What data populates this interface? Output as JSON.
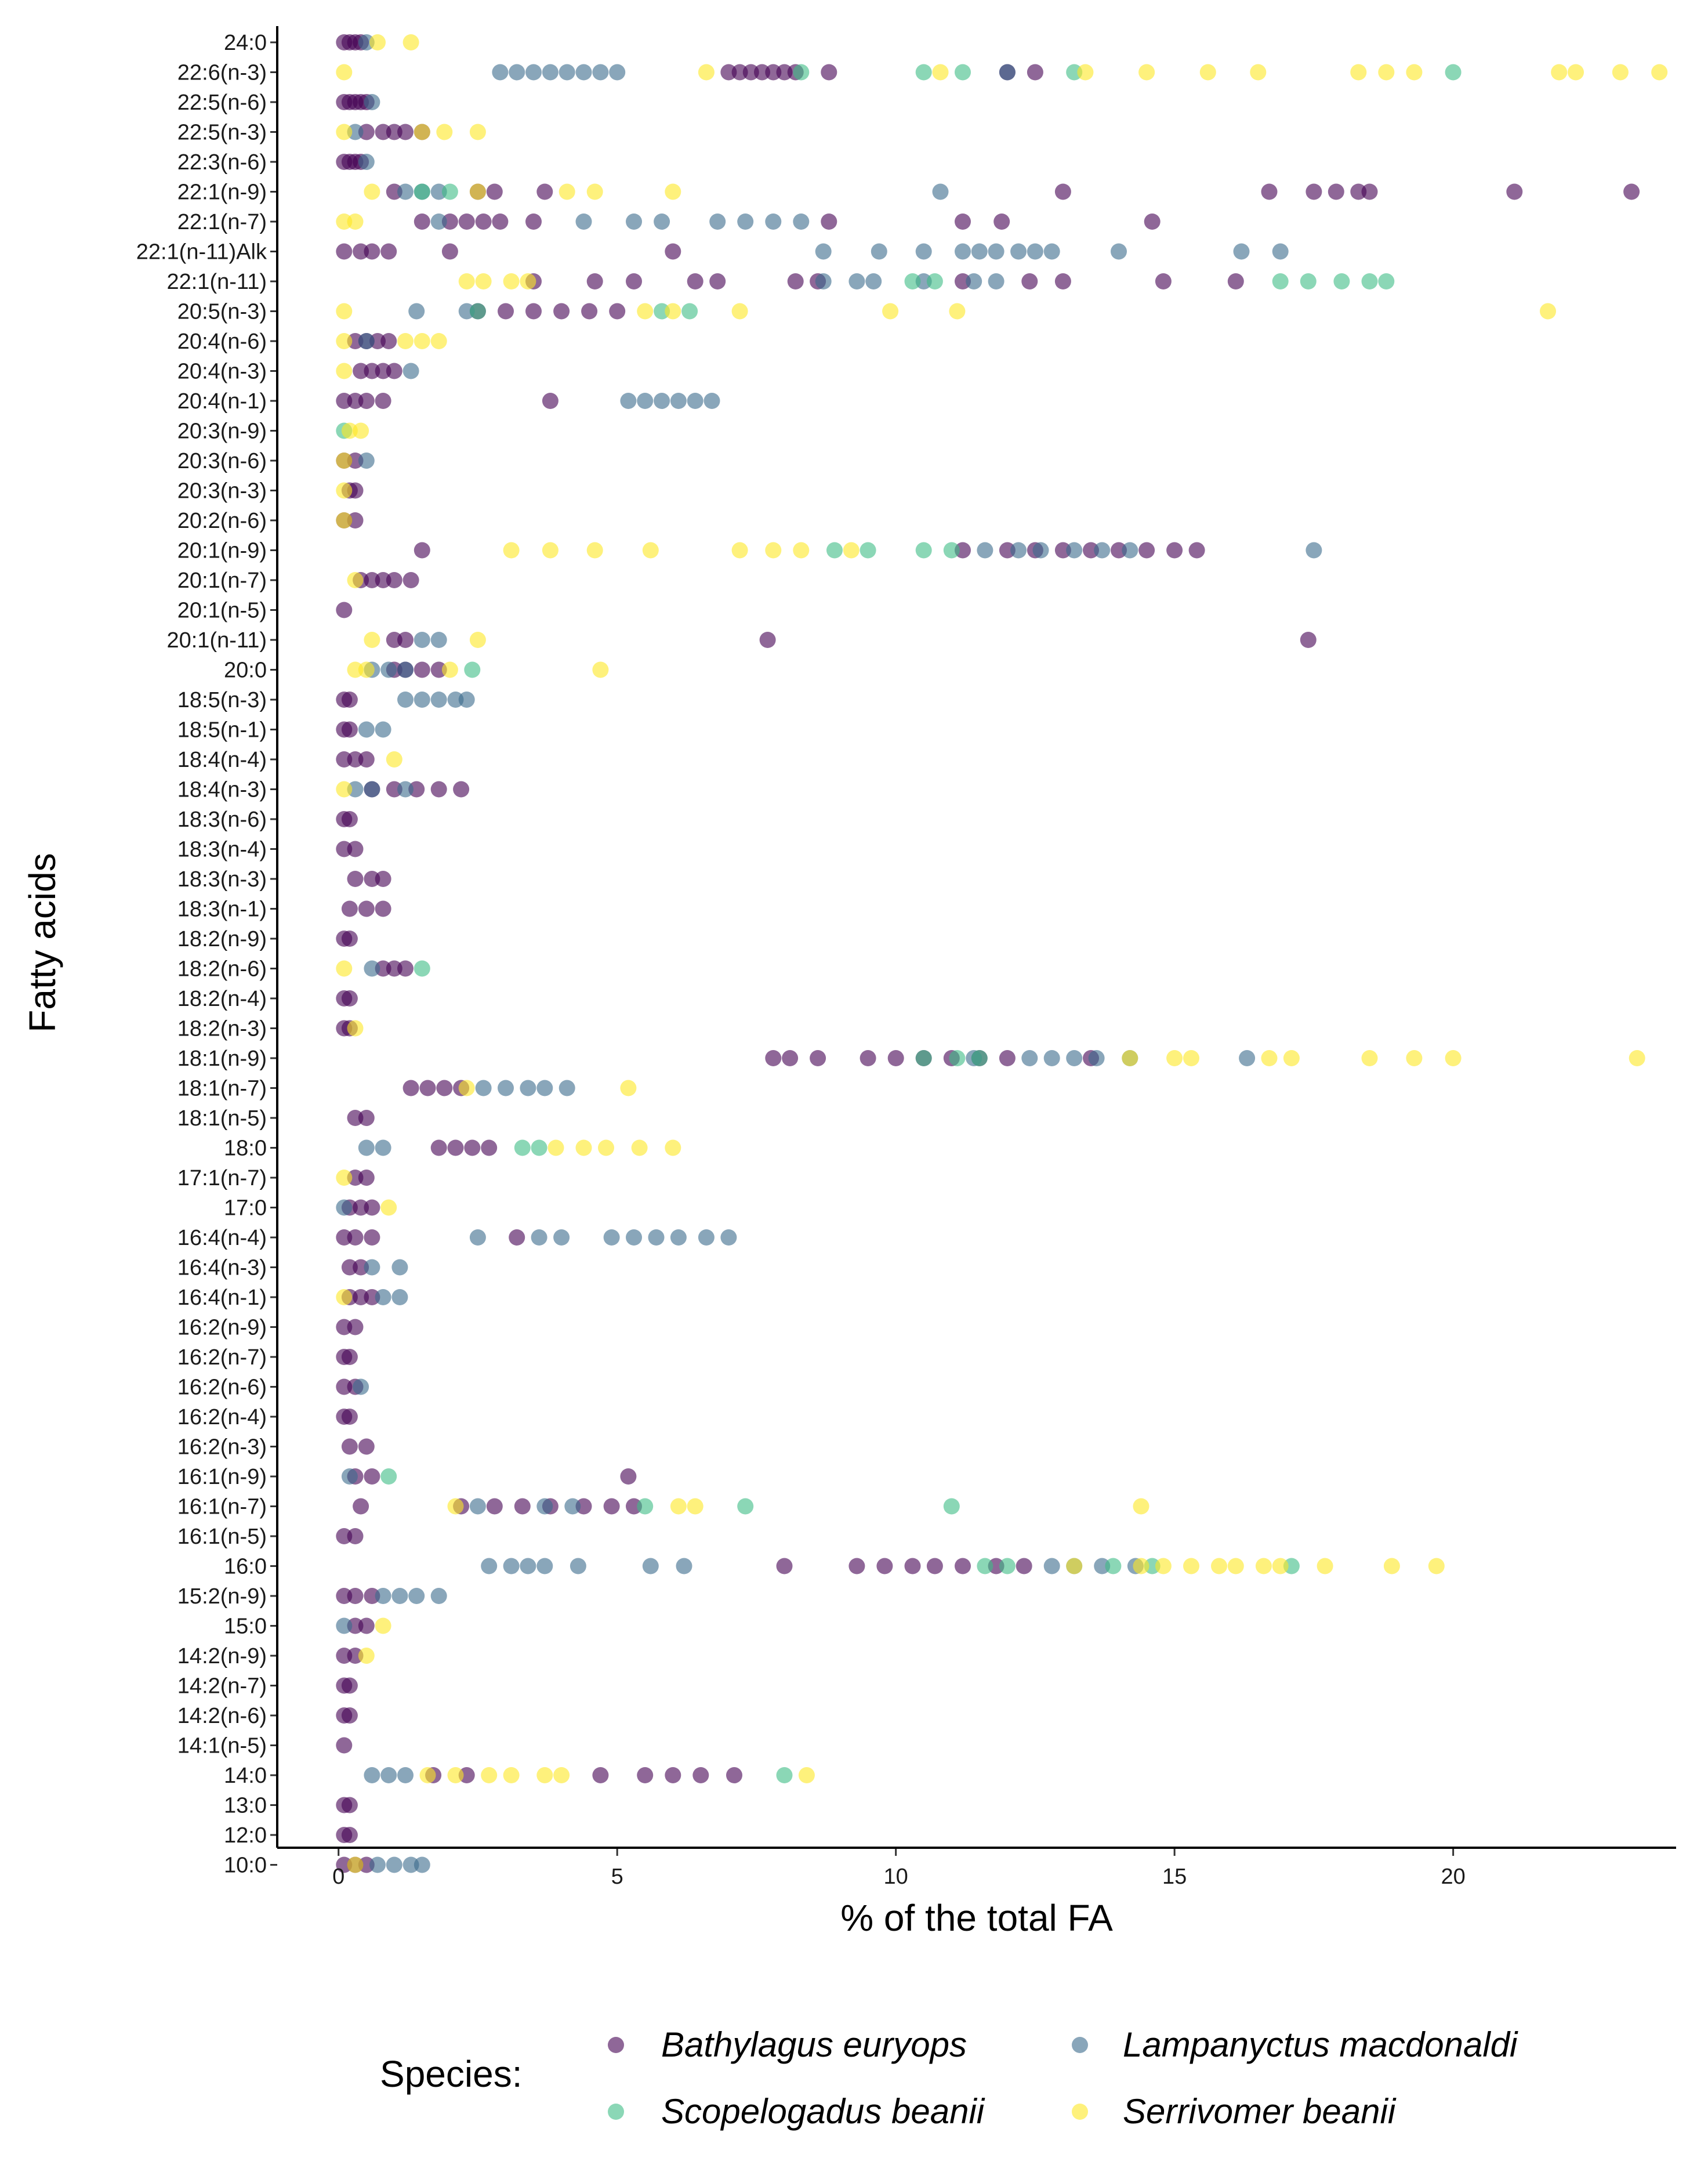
{
  "chart_data": {
    "type": "scatter",
    "title": "",
    "xlabel": "% of the total FA",
    "ylabel": "Fatty acids",
    "xlim": [
      -1.1,
      24.0
    ],
    "xticks": [
      0,
      5,
      10,
      15,
      20
    ],
    "grid": false,
    "legend_title": "Species:",
    "legend_position": "bottom",
    "categories": [
      "24:0",
      "22:6(n-3)",
      "22:5(n-6)",
      "22:5(n-3)",
      "22:3(n-6)",
      "22:1(n-9)",
      "22:1(n-7)",
      "22:1(n-11)Alk",
      "22:1(n-11)",
      "20:5(n-3)",
      "20:4(n-6)",
      "20:4(n-3)",
      "20:4(n-1)",
      "20:3(n-9)",
      "20:3(n-6)",
      "20:3(n-3)",
      "20:2(n-6)",
      "20:1(n-9)",
      "20:1(n-7)",
      "20:1(n-5)",
      "20:1(n-11)",
      "20:0",
      "18:5(n-3)",
      "18:5(n-1)",
      "18:4(n-4)",
      "18:4(n-3)",
      "18:3(n-6)",
      "18:3(n-4)",
      "18:3(n-3)",
      "18:3(n-1)",
      "18:2(n-9)",
      "18:2(n-6)",
      "18:2(n-4)",
      "18:2(n-3)",
      "18:1(n-9)",
      "18:1(n-7)",
      "18:1(n-5)",
      "18:0",
      "17:1(n-7)",
      "17:0",
      "16:4(n-4)",
      "16:4(n-3)",
      "16:4(n-1)",
      "16:2(n-9)",
      "16:2(n-7)",
      "16:2(n-6)",
      "16:2(n-4)",
      "16:2(n-3)",
      "16:1(n-9)",
      "16:1(n-7)",
      "16:1(n-5)",
      "16:0",
      "15:2(n-9)",
      "15:0",
      "14:2(n-9)",
      "14:2(n-7)",
      "14:2(n-6)",
      "14:1(n-5)",
      "14:0",
      "13:0",
      "12:0",
      "10:0"
    ],
    "series": [
      {
        "name": "Bathylagus euryops",
        "color": "#440154",
        "points": {
          "24:0": [
            0.1,
            0.2,
            0.3,
            0.4
          ],
          "22:6(n-3)": [
            7.0,
            7.2,
            7.4,
            7.6,
            7.8,
            8.0,
            8.2,
            8.8,
            12.0,
            12.5
          ],
          "22:5(n-6)": [
            0.1,
            0.2,
            0.3,
            0.4,
            0.5
          ],
          "22:5(n-3)": [
            0.5,
            0.8,
            1.0,
            1.2,
            1.5
          ],
          "22:3(n-6)": [
            0.1,
            0.2,
            0.3,
            0.4
          ],
          "22:1(n-9)": [
            1.0,
            2.5,
            2.8,
            3.7,
            13.0,
            16.7,
            17.5,
            17.9,
            18.3,
            18.5,
            21.1,
            23.2
          ],
          "22:1(n-7)": [
            1.5,
            2.0,
            2.3,
            2.6,
            2.9,
            3.5,
            8.8,
            11.2,
            11.9,
            14.6
          ],
          "22:1(n-11)Alk": [
            0.1,
            0.4,
            0.6,
            0.9,
            2.0,
            6.0
          ],
          "22:1(n-11)": [
            3.5,
            4.6,
            5.3,
            6.4,
            6.8,
            8.2,
            8.6,
            11.2,
            12.4,
            13.0,
            14.8,
            16.1
          ],
          "20:5(n-3)": [
            2.5,
            3.0,
            3.5,
            4.0,
            4.5,
            5.0
          ],
          "20:4(n-6)": [
            0.3,
            0.5,
            0.7,
            0.9
          ],
          "20:4(n-3)": [
            0.4,
            0.6,
            0.8,
            1.0
          ],
          "20:4(n-1)": [
            0.1,
            0.3,
            0.5,
            0.8,
            3.8
          ],
          "20:3(n-6)": [
            0.1,
            0.3
          ],
          "20:3(n-3)": [
            0.2,
            0.3
          ],
          "20:2(n-6)": [
            0.1,
            0.3
          ],
          "20:1(n-9)": [
            1.5,
            11.2,
            12.0,
            12.5,
            13.0,
            13.5,
            14.0,
            14.5,
            15.0,
            15.4
          ],
          "20:1(n-7)": [
            0.4,
            0.6,
            0.8,
            1.0,
            1.3
          ],
          "20:1(n-5)": [
            0.1
          ],
          "20:1(n-11)": [
            1.0,
            1.2,
            7.7,
            17.4
          ],
          "20:0": [
            1.0,
            1.2,
            1.5,
            1.8
          ],
          "18:5(n-3)": [
            0.1,
            0.2
          ],
          "18:5(n-1)": [
            0.1,
            0.2
          ],
          "18:4(n-4)": [
            0.1,
            0.3,
            0.5
          ],
          "18:4(n-3)": [
            0.6,
            1.0,
            1.4,
            1.8,
            2.2
          ],
          "18:3(n-6)": [
            0.1,
            0.2
          ],
          "18:3(n-4)": [
            0.1,
            0.3
          ],
          "18:3(n-3)": [
            0.3,
            0.6,
            0.8
          ],
          "18:3(n-1)": [
            0.2,
            0.5,
            0.8
          ],
          "18:2(n-9)": [
            0.1,
            0.2
          ],
          "18:2(n-6)": [
            0.8,
            1.0,
            1.2
          ],
          "18:2(n-4)": [
            0.1,
            0.2
          ],
          "18:2(n-3)": [
            0.1,
            0.2
          ],
          "18:1(n-9)": [
            7.8,
            8.1,
            8.6,
            9.5,
            10.0,
            10.5,
            11.0,
            11.5,
            12.0,
            13.5
          ],
          "18:1(n-7)": [
            1.3,
            1.6,
            1.9,
            2.2
          ],
          "18:1(n-5)": [
            0.3,
            0.5
          ],
          "18:0": [
            1.8,
            2.1,
            2.4,
            2.7
          ],
          "17:1(n-7)": [
            0.3,
            0.5
          ],
          "17:0": [
            0.2,
            0.4,
            0.6
          ],
          "16:4(n-4)": [
            0.1,
            0.3,
            0.6,
            3.2
          ],
          "16:4(n-3)": [
            0.2,
            0.4
          ],
          "16:4(n-1)": [
            0.2,
            0.4,
            0.6
          ],
          "16:2(n-9)": [
            0.1,
            0.3
          ],
          "16:2(n-7)": [
            0.1,
            0.2
          ],
          "16:2(n-6)": [
            0.1,
            0.3
          ],
          "16:2(n-4)": [
            0.1,
            0.2
          ],
          "16:2(n-3)": [
            0.2,
            0.5
          ],
          "16:1(n-9)": [
            0.3,
            0.6,
            5.2
          ],
          "16:1(n-7)": [
            0.4,
            2.2,
            2.8,
            3.3,
            3.8,
            4.4,
            4.9,
            5.3
          ],
          "16:1(n-5)": [
            0.1,
            0.3
          ],
          "16:0": [
            8.0,
            9.3,
            9.8,
            10.3,
            10.7,
            11.2,
            11.8,
            12.3
          ],
          "15:2(n-9)": [
            0.1,
            0.3,
            0.6
          ],
          "15:0": [
            0.3,
            0.5
          ],
          "14:2(n-9)": [
            0.1,
            0.3
          ],
          "14:2(n-7)": [
            0.1,
            0.2
          ],
          "14:2(n-6)": [
            0.1,
            0.2
          ],
          "14:1(n-5)": [
            0.1
          ],
          "14:0": [
            1.7,
            2.3,
            4.7,
            5.5,
            6.0,
            6.5,
            7.1
          ],
          "13:0": [
            0.1,
            0.2
          ],
          "12:0": [
            0.1,
            0.2
          ],
          "10:0": [
            0.1,
            0.3,
            0.5
          ]
        }
      },
      {
        "name": "Lampanyctus macdonaldi",
        "color": "#3b6b8c",
        "points": {
          "24:0": [
            0.5
          ],
          "22:6(n-3)": [
            2.9,
            3.2,
            3.5,
            3.8,
            4.1,
            4.4,
            4.7,
            5.0,
            12.0
          ],
          "22:5(n-6)": [
            0.6
          ],
          "22:5(n-3)": [
            0.3
          ],
          "22:3(n-6)": [
            0.5
          ],
          "22:1(n-9)": [
            1.2,
            1.5,
            1.8,
            10.8
          ],
          "22:1(n-7)": [
            1.8,
            4.4,
            5.3,
            5.8,
            6.8,
            7.3,
            7.8,
            8.3
          ],
          "22:1(n-11)Alk": [
            8.7,
            9.7,
            10.5,
            11.2,
            11.5,
            11.8,
            12.2,
            12.5,
            12.8,
            14.0,
            16.2,
            16.9
          ],
          "22:1(n-11)": [
            8.7,
            9.3,
            9.6,
            10.5,
            11.4,
            11.8
          ],
          "20:5(n-3)": [
            1.4,
            2.3
          ],
          "20:4(n-6)": [
            0.5
          ],
          "20:4(n-3)": [
            1.3
          ],
          "20:4(n-1)": [
            5.2,
            5.5,
            5.8,
            6.1,
            6.4,
            6.7
          ],
          "20:3(n-6)": [
            0.5
          ],
          "20:1(n-9)": [
            11.6,
            12.2,
            12.6,
            13.2,
            13.7,
            14.2,
            17.5
          ],
          "20:1(n-11)": [
            1.5,
            1.8
          ],
          "20:0": [
            0.6,
            0.9,
            1.2
          ],
          "18:5(n-3)": [
            1.2,
            1.5,
            1.8,
            2.1,
            2.3
          ],
          "18:5(n-1)": [
            0.5,
            0.8
          ],
          "18:4(n-3)": [
            0.3,
            0.6,
            1.2
          ],
          "18:2(n-6)": [
            0.6
          ],
          "18:1(n-9)": [
            11.4,
            12.4,
            12.8,
            13.2,
            13.6,
            14.2,
            16.3
          ],
          "18:1(n-7)": [
            2.6,
            3.0,
            3.4,
            3.7,
            4.1
          ],
          "18:0": [
            0.5,
            0.8
          ],
          "17:0": [
            0.1
          ],
          "16:4(n-4)": [
            2.5,
            3.6,
            4.0,
            4.9,
            5.3,
            5.7,
            6.1,
            6.6,
            7.0
          ],
          "16:4(n-3)": [
            0.6,
            1.1
          ],
          "16:4(n-1)": [
            0.8,
            1.1
          ],
          "16:2(n-6)": [
            0.4
          ],
          "16:1(n-9)": [
            0.2
          ],
          "16:1(n-7)": [
            2.5,
            3.7,
            4.2
          ],
          "16:0": [
            2.7,
            3.1,
            3.4,
            3.7,
            4.3,
            5.6,
            6.2,
            12.8,
            13.2,
            13.7,
            14.3
          ],
          "15:2(n-9)": [
            0.8,
            1.1,
            1.4,
            1.8
          ],
          "15:0": [
            0.1
          ],
          "14:0": [
            0.6,
            0.9,
            1.2
          ],
          "10:0": [
            0.7,
            1.0,
            1.3,
            1.5
          ]
        }
      },
      {
        "name": "Scopelogadus beanii",
        "color": "#3ebd85",
        "points": {
          "22:6(n-3)": [
            8.3,
            10.5,
            11.2,
            13.2,
            20.0
          ],
          "22:1(n-9)": [
            1.5,
            2.0
          ],
          "22:1(n-11)": [
            10.3,
            10.7,
            16.9,
            17.4,
            18.0,
            18.5,
            18.8
          ],
          "20:5(n-3)": [
            2.5,
            5.8,
            6.3
          ],
          "20:3(n-9)": [
            0.1
          ],
          "20:1(n-9)": [
            8.9,
            9.5,
            10.5,
            11.0
          ],
          "20:0": [
            2.4
          ],
          "18:2(n-6)": [
            1.5
          ],
          "18:1(n-9)": [
            10.5,
            11.1,
            11.5
          ],
          "18:0": [
            3.3,
            3.6
          ],
          "16:1(n-9)": [
            0.9
          ],
          "16:1(n-7)": [
            5.5,
            7.3,
            11.0
          ],
          "16:0": [
            11.6,
            12.0,
            13.9,
            14.6,
            17.1
          ],
          "14:0": [
            8.0
          ]
        }
      },
      {
        "name": "Serrivomer beanii",
        "color": "#fde725",
        "points": {
          "24:0": [
            0.7,
            1.3
          ],
          "22:6(n-3)": [
            0.1,
            6.6,
            10.8,
            13.4,
            14.5,
            15.6,
            16.5,
            18.3,
            18.8,
            19.3,
            21.9,
            22.2,
            23.0,
            23.7
          ],
          "22:5(n-3)": [
            0.1,
            1.5,
            1.9,
            2.5
          ],
          "22:1(n-9)": [
            0.6,
            2.5,
            4.1,
            4.6,
            6.0
          ],
          "22:1(n-7)": [
            0.1,
            0.3
          ],
          "22:1(n-11)": [
            2.3,
            2.6,
            3.1,
            3.4
          ],
          "20:5(n-3)": [
            0.1,
            5.5,
            6.0,
            7.2,
            9.9,
            11.1,
            21.7
          ],
          "20:4(n-6)": [
            0.1,
            1.2,
            1.5,
            1.8
          ],
          "20:4(n-3)": [
            0.1
          ],
          "20:3(n-9)": [
            0.2,
            0.4
          ],
          "20:3(n-6)": [
            0.1
          ],
          "20:3(n-3)": [
            0.1
          ],
          "20:2(n-6)": [
            0.1
          ],
          "20:1(n-9)": [
            3.1,
            3.8,
            4.6,
            5.6,
            7.2,
            7.8,
            8.3,
            9.2
          ],
          "20:1(n-7)": [
            0.3
          ],
          "20:1(n-11)": [
            0.6,
            2.5
          ],
          "20:0": [
            0.3,
            0.5,
            2.0,
            4.7
          ],
          "18:4(n-4)": [
            1.0
          ],
          "18:4(n-3)": [
            0.1
          ],
          "18:2(n-6)": [
            0.1
          ],
          "18:2(n-3)": [
            0.3
          ],
          "18:1(n-9)": [
            14.2,
            15.0,
            15.3,
            16.7,
            17.1,
            18.5,
            19.3,
            20.0,
            23.3
          ],
          "18:1(n-7)": [
            2.3,
            5.2
          ],
          "18:0": [
            3.9,
            4.4,
            4.8,
            5.4,
            6.0
          ],
          "17:1(n-7)": [
            0.1
          ],
          "17:0": [
            0.9
          ],
          "16:4(n-1)": [
            0.1
          ],
          "16:1(n-7)": [
            2.1,
            6.1,
            6.4,
            14.4
          ],
          "16:0": [
            13.2,
            14.4,
            14.8,
            15.3,
            15.8,
            16.1,
            16.6,
            16.9,
            17.7,
            18.9,
            19.7
          ],
          "15:0": [
            0.8
          ],
          "14:2(n-9)": [
            0.5
          ],
          "14:0": [
            1.6,
            2.1,
            2.7,
            3.1,
            3.7,
            4.0,
            8.4
          ],
          "10:0": [
            0.3
          ]
        }
      }
    ]
  }
}
